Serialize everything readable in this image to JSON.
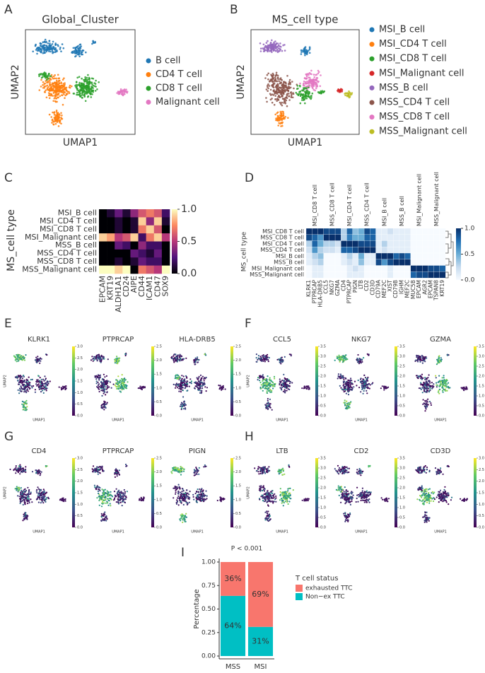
{
  "chart_data": [
    {
      "type": "scatter",
      "panel": "A",
      "title": "Global_Cluster",
      "xlabel": "UMAP1",
      "ylabel": "UMAP2",
      "series": [
        {
          "name": "B cell",
          "color": "#1f77b4"
        },
        {
          "name": "CD4 T cell",
          "color": "#ff7f0e"
        },
        {
          "name": "CD8 T cell",
          "color": "#2ca02c"
        },
        {
          "name": "Malignant cell",
          "color": "#e377c2"
        }
      ]
    },
    {
      "type": "scatter",
      "panel": "B",
      "title": "MS_cell type",
      "xlabel": "UMAP1",
      "ylabel": "UMAP2",
      "series": [
        {
          "name": "MSI_B cell",
          "color": "#1f77b4"
        },
        {
          "name": "MSI_CD4 T cell",
          "color": "#ff7f0e"
        },
        {
          "name": "MSI_CD8 T cell",
          "color": "#2ca02c"
        },
        {
          "name": "MSI_Malignant cell",
          "color": "#d62728"
        },
        {
          "name": "MSS_B cell",
          "color": "#9467bd"
        },
        {
          "name": "MSS_CD4 T cell",
          "color": "#8c564b"
        },
        {
          "name": "MSS_CD8 T cell",
          "color": "#e377c2"
        },
        {
          "name": "MSS_Malignant cell",
          "color": "#bcbd22"
        }
      ]
    },
    {
      "type": "heatmap",
      "panel": "C",
      "colormap": "magma",
      "ylabel": "MS_cell type",
      "rows": [
        "MSI_B cell",
        "MSI_CD4 T cell",
        "MSI_CD8 T cell",
        "MSI_Malignant cell",
        "MSS_B cell",
        "MSS_CD4 T cell",
        "MSS_CD8 T cell",
        "MSS_Malignant cell"
      ],
      "columns": [
        "EPCAM",
        "KRT19",
        "ALDH1A1",
        "CD24",
        "AIPE",
        "CD44",
        "ICAM1",
        "CD47",
        "SOX9"
      ],
      "values": [
        [
          0,
          0.1,
          0.3,
          0.1,
          0.4,
          0.6,
          0.7,
          0.6,
          0.2
        ],
        [
          0,
          0,
          0.1,
          0,
          0.1,
          0.9,
          0.4,
          0.9,
          0.1
        ],
        [
          0,
          0,
          0.1,
          0,
          0.1,
          0.7,
          0.9,
          0.6,
          0
        ],
        [
          0.9,
          0.8,
          0.5,
          0.6,
          0.9,
          0.2,
          0.7,
          0.9,
          0.5
        ],
        [
          0,
          0,
          0.3,
          0.2,
          0,
          0.4,
          0.2,
          0.2,
          0
        ],
        [
          0,
          0,
          0,
          0,
          0.3,
          0.2,
          0.1,
          0.3,
          0
        ],
        [
          0,
          0,
          0.1,
          0,
          0.1,
          0.3,
          0.2,
          0.2,
          0
        ],
        [
          1,
          1,
          0.9,
          1,
          0,
          0.7,
          0.6,
          0.5,
          1
        ]
      ],
      "clim": [
        0,
        1
      ],
      "cticks": [
        {
          "value": 1,
          "label": "1.0"
        },
        {
          "value": 0.5,
          "label": "0.5"
        },
        {
          "value": 0,
          "label": "0.0"
        }
      ]
    },
    {
      "type": "heatmap",
      "panel": "D",
      "colormap": "blues",
      "ylabel": "MS_cell type",
      "rows": [
        "MSI_CD8 T cell",
        "MSS_CD8 T cell",
        "MSI_CD4 T cell",
        "MSS_CD4 T cell",
        "MSI_B cell",
        "MSS_B cell",
        "MSI_Malignant cell",
        "MSS_Malignant cell"
      ],
      "column_groups": [
        "MSI_CD8 T cell",
        "MSS_CD8 T cell",
        "MSI_CD4 T cell",
        "MSS_CD4 T cell",
        "MSI_B cell",
        "MSS_B cell",
        "MSI_Malignant cell",
        "MSS_Malignant cell"
      ],
      "columns": [
        "KLRK1",
        "PTPRCAP",
        "HLA-DRB5",
        "CCL5",
        "NKG7",
        "GZMA",
        "CD4",
        "PTPRCAP",
        "PIGN",
        "LTB",
        "CD2",
        "CD3D",
        "CD79A",
        "MEF2C",
        "XIST",
        "CD79B",
        "IGHM",
        "MEF2C",
        "MUC5B",
        "EPCAM",
        "AGR2",
        "EPCAM",
        "TSPAN8",
        "KRT19"
      ],
      "values": [
        [
          1,
          1,
          1,
          0.9,
          0.9,
          0.9,
          0.3,
          0.8,
          0.4,
          0.5,
          0.9,
          0.8,
          0.1,
          0.1,
          0.2,
          0.1,
          0.1,
          0.1,
          0,
          0,
          0,
          0,
          0,
          0
        ],
        [
          0.9,
          0.8,
          0.6,
          1,
          1,
          1,
          0.3,
          0.7,
          0.5,
          0.5,
          0.8,
          0.8,
          0.1,
          0.1,
          0.1,
          0.1,
          0.1,
          0.1,
          0,
          0,
          0,
          0,
          0,
          0
        ],
        [
          0.3,
          0.8,
          0.5,
          0.3,
          0.3,
          0.2,
          1,
          1,
          1,
          0.9,
          0.9,
          0.9,
          0.1,
          0.3,
          0.1,
          0.1,
          0.1,
          0.1,
          0,
          0,
          0,
          0,
          0,
          0
        ],
        [
          0.2,
          0.6,
          0.3,
          0.2,
          0.2,
          0.1,
          0.8,
          0.8,
          0.9,
          1,
          1,
          1,
          0.1,
          0.2,
          0.1,
          0.1,
          0.1,
          0.1,
          0,
          0,
          0,
          0,
          0,
          0
        ],
        [
          0.1,
          0.3,
          0.4,
          0,
          0,
          0,
          0.1,
          0.3,
          0.1,
          0.5,
          0.1,
          0.1,
          1,
          1,
          1,
          0.8,
          0.9,
          0.8,
          0,
          0,
          0,
          0,
          0,
          0
        ],
        [
          0.1,
          0.2,
          0.3,
          0,
          0,
          0,
          0.1,
          0.2,
          0.1,
          0.4,
          0.1,
          0.1,
          0.9,
          0.6,
          0.9,
          1,
          1,
          1,
          0,
          0,
          0,
          0,
          0,
          0
        ],
        [
          0,
          0.1,
          0.1,
          0,
          0,
          0,
          0,
          0.1,
          0.2,
          0.1,
          0,
          0,
          0,
          0,
          0.1,
          0,
          0,
          0,
          1,
          1,
          1,
          0.9,
          0.9,
          0.8
        ],
        [
          0,
          0.1,
          0.1,
          0,
          0,
          0,
          0,
          0.1,
          0.1,
          0.1,
          0,
          0,
          0,
          0,
          0.1,
          0,
          0,
          0,
          0.8,
          0.9,
          0.9,
          1,
          1,
          1
        ]
      ],
      "clim": [
        0,
        1
      ],
      "cticks": [
        {
          "value": 1,
          "label": "1.0"
        },
        {
          "value": 0.5,
          "label": "0.5"
        },
        {
          "value": 0,
          "label": "0.0"
        }
      ]
    },
    {
      "type": "feature",
      "panels": [
        "E",
        "F",
        "G",
        "H"
      ],
      "xlabel": "UMAP1",
      "ylabel": "UMAP2",
      "plots": [
        {
          "title": "KLRK1",
          "clim": [
            0,
            3
          ],
          "cticks": [
            {
              "value": 0,
              "label": "0.0"
            },
            {
              "value": 0.5,
              "label": "0.5"
            },
            {
              "value": 1,
              "label": "1.0"
            },
            {
              "value": 1.5,
              "label": "1.5"
            },
            {
              "value": 2,
              "label": "2.0"
            },
            {
              "value": 2.5,
              "label": "2.5"
            },
            {
              "value": 3,
              "label": "3.0"
            }
          ]
        },
        {
          "title": "PTPRCAP",
          "clim": [
            0,
            2.5
          ],
          "cticks": [
            {
              "value": 0,
              "label": "0.0"
            },
            {
              "value": 0.5,
              "label": "0.5"
            },
            {
              "value": 1,
              "label": "1.0"
            },
            {
              "value": 1.5,
              "label": "1.5"
            },
            {
              "value": 2,
              "label": "2.0"
            },
            {
              "value": 2.5,
              "label": "2.5"
            }
          ]
        },
        {
          "title": "HLA-DRB5",
          "clim": [
            0,
            2.5
          ],
          "cticks": [
            {
              "value": 0,
              "label": "0.0"
            },
            {
              "value": 0.5,
              "label": "0.5"
            },
            {
              "value": 1,
              "label": "1.0"
            },
            {
              "value": 1.5,
              "label": "1.5"
            },
            {
              "value": 2,
              "label": "2.0"
            },
            {
              "value": 2.5,
              "label": "2.5"
            }
          ]
        },
        {
          "title": "CCL5",
          "clim": [
            0,
            3.5
          ],
          "cticks": [
            {
              "value": 0,
              "label": "0.0"
            },
            {
              "value": 0.5,
              "label": "0.5"
            },
            {
              "value": 1,
              "label": "1.0"
            },
            {
              "value": 1.5,
              "label": "1.5"
            },
            {
              "value": 2,
              "label": "2.0"
            },
            {
              "value": 2.5,
              "label": "2.5"
            },
            {
              "value": 3,
              "label": "3.0"
            },
            {
              "value": 3.5,
              "label": "3.5"
            }
          ]
        },
        {
          "title": "NKG7",
          "clim": [
            0,
            3.5
          ],
          "cticks": [
            {
              "value": 0,
              "label": "0.0"
            },
            {
              "value": 0.5,
              "label": "0.5"
            },
            {
              "value": 1,
              "label": "1.0"
            },
            {
              "value": 1.5,
              "label": "1.5"
            },
            {
              "value": 2,
              "label": "2.0"
            },
            {
              "value": 2.5,
              "label": "2.5"
            },
            {
              "value": 3,
              "label": "3.0"
            },
            {
              "value": 3.5,
              "label": "3.5"
            }
          ]
        },
        {
          "title": "GZMA",
          "clim": [
            0,
            3.5
          ],
          "cticks": [
            {
              "value": 0,
              "label": "0.0"
            },
            {
              "value": 0.5,
              "label": "0.5"
            },
            {
              "value": 1,
              "label": "1.0"
            },
            {
              "value": 1.5,
              "label": "1.5"
            },
            {
              "value": 2,
              "label": "2.0"
            },
            {
              "value": 2.5,
              "label": "2.5"
            },
            {
              "value": 3,
              "label": "3.0"
            },
            {
              "value": 3.5,
              "label": "3.5"
            }
          ]
        },
        {
          "title": "CD4",
          "clim": [
            0,
            3
          ],
          "cticks": [
            {
              "value": 0,
              "label": "0.0"
            },
            {
              "value": 0.5,
              "label": "0.5"
            },
            {
              "value": 1,
              "label": "1.0"
            },
            {
              "value": 1.5,
              "label": "1.5"
            },
            {
              "value": 2,
              "label": "2.0"
            },
            {
              "value": 2.5,
              "label": "2.5"
            },
            {
              "value": 3,
              "label": "3.0"
            }
          ]
        },
        {
          "title": "PTPRCAP",
          "clim": [
            0,
            2.5
          ],
          "cticks": [
            {
              "value": 0,
              "label": "0.0"
            },
            {
              "value": 0.5,
              "label": "0.5"
            },
            {
              "value": 1,
              "label": "1.0"
            },
            {
              "value": 1.5,
              "label": "1.5"
            },
            {
              "value": 2,
              "label": "2.0"
            },
            {
              "value": 2.5,
              "label": "2.5"
            }
          ]
        },
        {
          "title": "PIGN",
          "clim": [
            0,
            2.5
          ],
          "cticks": [
            {
              "value": 0,
              "label": "0.0"
            },
            {
              "value": 0.5,
              "label": "0.5"
            },
            {
              "value": 1,
              "label": "1.0"
            },
            {
              "value": 1.5,
              "label": "1.5"
            },
            {
              "value": 2,
              "label": "2.0"
            },
            {
              "value": 2.5,
              "label": "2.5"
            }
          ]
        },
        {
          "title": "LTB",
          "clim": [
            0,
            3.5
          ],
          "cticks": [
            {
              "value": 0,
              "label": "0.0"
            },
            {
              "value": 0.5,
              "label": "0.5"
            },
            {
              "value": 1,
              "label": "1.0"
            },
            {
              "value": 1.5,
              "label": "1.5"
            },
            {
              "value": 2,
              "label": "2.0"
            },
            {
              "value": 2.5,
              "label": "2.5"
            },
            {
              "value": 3,
              "label": "3.0"
            },
            {
              "value": 3.5,
              "label": "3.5"
            }
          ]
        },
        {
          "title": "CD2",
          "clim": [
            0,
            3.5
          ],
          "cticks": [
            {
              "value": 0,
              "label": "0.0"
            },
            {
              "value": 0.5,
              "label": "0.5"
            },
            {
              "value": 1,
              "label": "1.0"
            },
            {
              "value": 1.5,
              "label": "1.5"
            },
            {
              "value": 2,
              "label": "2.0"
            },
            {
              "value": 2.5,
              "label": "2.5"
            },
            {
              "value": 3,
              "label": "3.0"
            },
            {
              "value": 3.5,
              "label": "3.5"
            }
          ]
        },
        {
          "title": "CD3D",
          "clim": [
            0,
            3
          ],
          "cticks": [
            {
              "value": 0,
              "label": "0.0"
            },
            {
              "value": 0.5,
              "label": "0.5"
            },
            {
              "value": 1,
              "label": "1.0"
            },
            {
              "value": 1.5,
              "label": "1.5"
            },
            {
              "value": 2,
              "label": "2.0"
            },
            {
              "value": 2.5,
              "label": "2.5"
            },
            {
              "value": 3,
              "label": "3.0"
            }
          ]
        }
      ]
    },
    {
      "type": "stacked_bar",
      "panel": "I",
      "annotation": "P < 0.001",
      "ylabel": "Percentage",
      "categories": [
        "MSS",
        "MSI"
      ],
      "ylim": [
        0,
        1
      ],
      "yticks": [
        {
          "value": 0,
          "label": "0.00"
        },
        {
          "value": 0.25,
          "label": "0.25"
        },
        {
          "value": 0.5,
          "label": "0.50"
        },
        {
          "value": 0.75,
          "label": "0.75"
        },
        {
          "value": 1,
          "label": "1.00"
        }
      ],
      "legend_title": "T cell status",
      "series": [
        {
          "name": "Non−ex TTC",
          "color": "#00BFC4",
          "values": [
            0.64,
            0.31
          ],
          "value_labels": [
            "64%",
            "31%"
          ]
        },
        {
          "name": "exhausted TTC",
          "color": "#F8766D",
          "values": [
            0.36,
            0.69
          ],
          "value_labels": [
            "36%",
            "69%"
          ]
        }
      ]
    }
  ]
}
